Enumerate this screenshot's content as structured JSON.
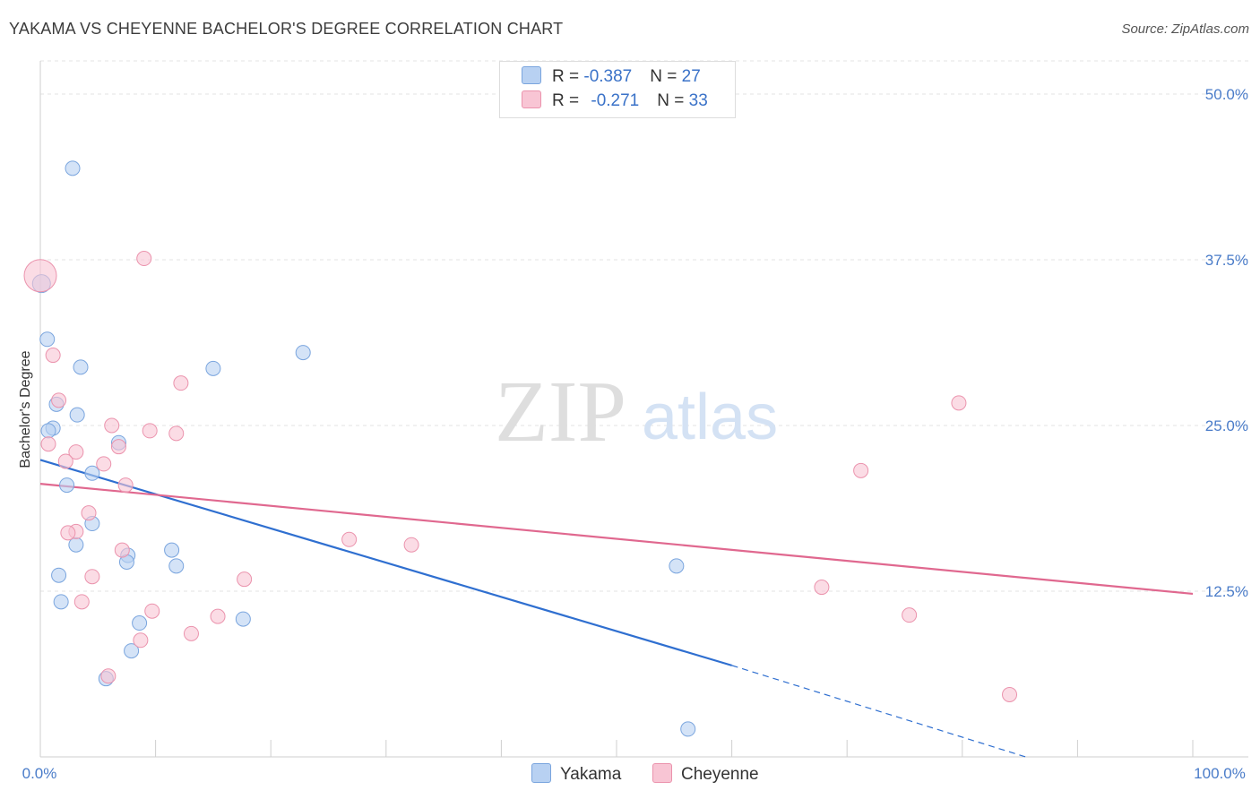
{
  "title": "YAKAMA VS CHEYENNE BACHELOR'S DEGREE CORRELATION CHART",
  "source": "Source: ZipAtlas.com",
  "watermark": {
    "zip": "ZIP",
    "atlas": "atlas"
  },
  "legend": {
    "yakama": {
      "r_label": "R = ",
      "r": "-0.387",
      "n_label": "N = ",
      "n": "27"
    },
    "cheyenne": {
      "r_label": "R = ",
      "r": "-0.271",
      "n_label": "N = ",
      "n": "33"
    }
  },
  "colors": {
    "yakama_fill": "#b8d1f2",
    "yakama_stroke": "#7aa5de",
    "yakama_line": "#2f6fd0",
    "cheyenne_fill": "#f8c5d4",
    "cheyenne_stroke": "#eb93ad",
    "cheyenne_line": "#e0688f",
    "tick_text": "#4a7cc9",
    "grid": "#e3e3e3"
  },
  "chart_data": {
    "type": "scatter",
    "title": "YAKAMA VS CHEYENNE BACHELOR'S DEGREE CORRELATION CHART",
    "xlabel": "",
    "ylabel": "Bachelor's Degree",
    "xlim": [
      0,
      100
    ],
    "ylim": [
      0,
      52.5
    ],
    "x_tick_labels": [
      "0.0%",
      "100.0%"
    ],
    "y_ticks": [
      12.5,
      25.0,
      37.5,
      50.0
    ],
    "y_tick_labels": [
      "12.5%",
      "25.0%",
      "37.5%",
      "50.0%"
    ],
    "grid": "horizontal dashed",
    "series": [
      {
        "name": "Yakama",
        "points": [
          [
            2.8,
            44.4
          ],
          [
            0.1,
            35.7
          ],
          [
            0.6,
            31.5
          ],
          [
            3.5,
            29.4
          ],
          [
            15.0,
            29.3
          ],
          [
            22.8,
            30.5
          ],
          [
            1.4,
            26.6
          ],
          [
            3.2,
            25.8
          ],
          [
            1.1,
            24.8
          ],
          [
            0.7,
            24.6
          ],
          [
            6.8,
            23.7
          ],
          [
            4.5,
            21.4
          ],
          [
            2.3,
            20.5
          ],
          [
            4.5,
            17.6
          ],
          [
            3.1,
            16.0
          ],
          [
            7.6,
            15.2
          ],
          [
            11.4,
            15.6
          ],
          [
            7.5,
            14.7
          ],
          [
            11.8,
            14.4
          ],
          [
            1.6,
            13.7
          ],
          [
            1.8,
            11.7
          ],
          [
            8.6,
            10.1
          ],
          [
            17.6,
            10.4
          ],
          [
            7.9,
            8.0
          ],
          [
            5.7,
            5.9
          ],
          [
            55.2,
            14.4
          ],
          [
            56.2,
            2.1
          ]
        ]
      },
      {
        "name": "Cheyenne",
        "points": [
          [
            0.0,
            36.3
          ],
          [
            9.0,
            37.6
          ],
          [
            1.1,
            30.3
          ],
          [
            12.2,
            28.2
          ],
          [
            1.6,
            26.9
          ],
          [
            6.2,
            25.0
          ],
          [
            9.5,
            24.6
          ],
          [
            11.8,
            24.4
          ],
          [
            0.7,
            23.6
          ],
          [
            6.8,
            23.4
          ],
          [
            3.1,
            23.0
          ],
          [
            2.2,
            22.3
          ],
          [
            5.5,
            22.1
          ],
          [
            7.4,
            20.5
          ],
          [
            4.2,
            18.4
          ],
          [
            3.1,
            17.0
          ],
          [
            2.4,
            16.9
          ],
          [
            7.1,
            15.6
          ],
          [
            26.8,
            16.4
          ],
          [
            32.2,
            16.0
          ],
          [
            4.5,
            13.6
          ],
          [
            17.7,
            13.4
          ],
          [
            3.6,
            11.7
          ],
          [
            9.7,
            11.0
          ],
          [
            15.4,
            10.6
          ],
          [
            13.1,
            9.3
          ],
          [
            8.7,
            8.8
          ],
          [
            5.9,
            6.1
          ],
          [
            67.8,
            12.8
          ],
          [
            71.2,
            21.6
          ],
          [
            75.4,
            10.7
          ],
          [
            79.7,
            26.7
          ],
          [
            84.1,
            4.7
          ]
        ]
      }
    ],
    "trend_lines": [
      {
        "series": "Yakama",
        "solid": [
          [
            0,
            22.4
          ],
          [
            60,
            6.9
          ]
        ],
        "dashed": [
          [
            60,
            6.9
          ],
          [
            85.5,
            0.0
          ]
        ]
      },
      {
        "series": "Cheyenne",
        "solid": [
          [
            0,
            20.6
          ],
          [
            100,
            12.3
          ]
        ]
      }
    ],
    "bottom_legend": [
      "Yakama",
      "Cheyenne"
    ]
  }
}
